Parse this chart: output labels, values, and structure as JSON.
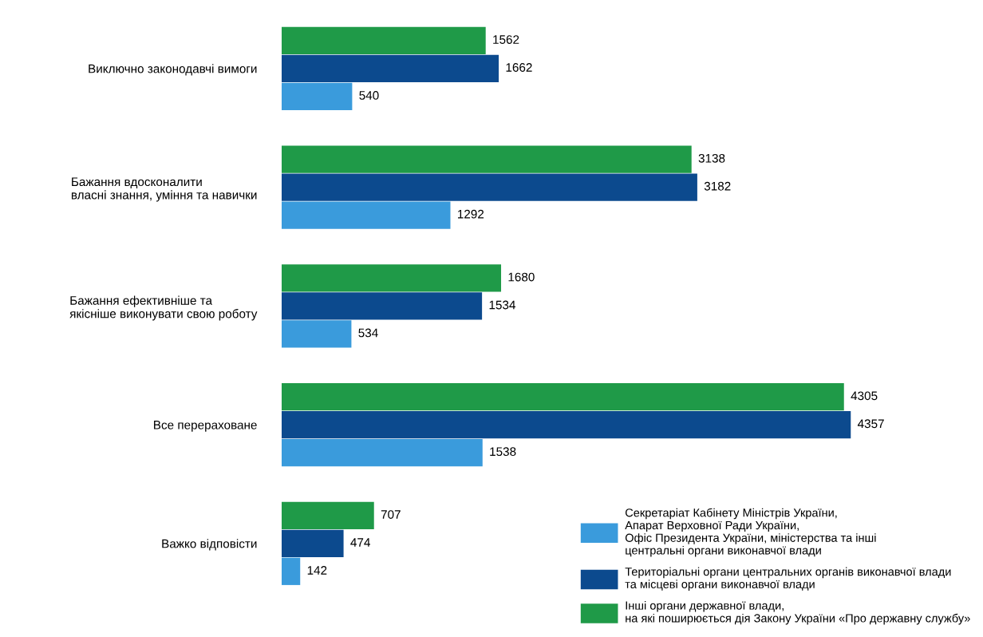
{
  "chart_data": {
    "type": "bar",
    "orientation": "horizontal",
    "categories": [
      "Виключно законодавчі вимоги",
      "Бажання вдосконалити\nвласні знання, уміння та навички",
      "Бажання ефективніше та\nякісніше виконувати свою роботу",
      "Все перераховане",
      "Важко відповісти"
    ],
    "series": [
      {
        "name": "Інші органи державної влади,\nна які поширюється дія Закону України «Про державну службу»",
        "color": "#1f9a48",
        "values": [
          1562,
          3138,
          1680,
          4305,
          707
        ]
      },
      {
        "name": "Територіальні органи центральних органів виконавчої влади\nта місцеві органи виконавчої влади",
        "color": "#0c4a8e",
        "values": [
          1662,
          3182,
          1534,
          4357,
          474
        ]
      },
      {
        "name": "Секретаріат Кабінету Міністрів України,\nАпарат Верховної Ради України,\nОфіс Президента України, міністерства та інші\nцентральні органи виконавчої влади",
        "color": "#3a9bdc",
        "values": [
          540,
          1292,
          534,
          1538,
          142
        ]
      }
    ],
    "data_labels": true,
    "legend": "bottom right",
    "tick_labels": "y",
    "grid": false
  }
}
